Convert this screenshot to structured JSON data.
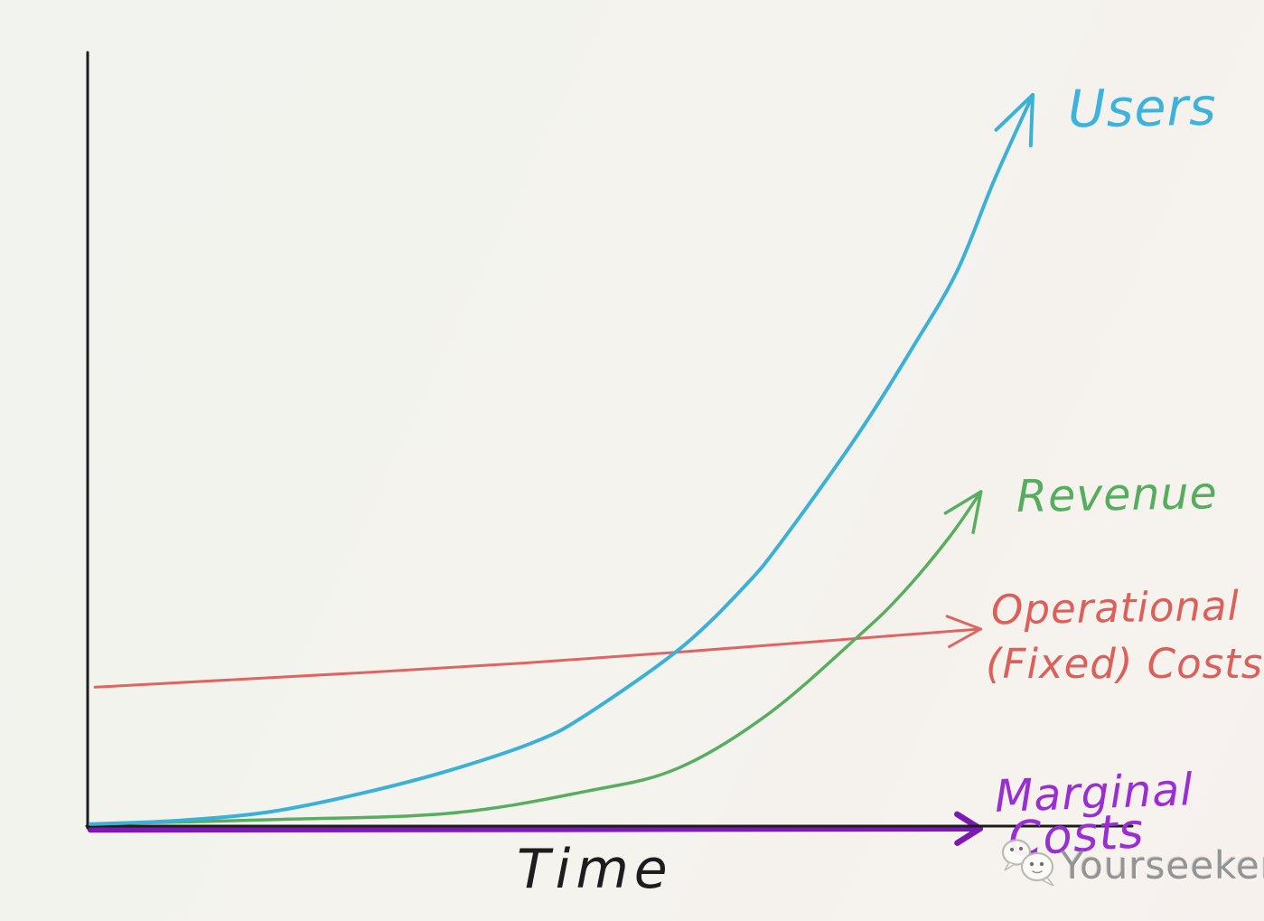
{
  "page": {
    "background": "#f3f3ee",
    "watermark": {
      "text": "Yourseeker",
      "icon": "wechat-chat-bubbles",
      "color": "#949494"
    }
  },
  "chart_data": {
    "type": "line",
    "title": "",
    "xlabel": "Time",
    "ylabel": "",
    "axis_color": "#1d1d1d",
    "grid": false,
    "legend_position": "handwritten labels at end of each line with arrow",
    "x_range": [
      0,
      10
    ],
    "y_range": [
      0,
      100
    ],
    "series": [
      {
        "name": "Users",
        "color": "#3bb1d8",
        "label_color": "#3cb3dc",
        "points": [
          [
            0,
            0.4
          ],
          [
            0.96,
            0.9
          ],
          [
            1.92,
            2.1
          ],
          [
            2.88,
            4.6
          ],
          [
            3.83,
            7.8
          ],
          [
            4.73,
            11.7
          ],
          [
            5.27,
            15.4
          ],
          [
            6.26,
            24.4
          ],
          [
            6.93,
            32.7
          ],
          [
            7.33,
            38.9
          ],
          [
            8.15,
            53.7
          ],
          [
            8.75,
            66.0
          ],
          [
            9.2,
            76.0
          ],
          [
            9.59,
            88.3
          ],
          [
            10,
            100
          ]
        ]
      },
      {
        "name": "Revenue",
        "color": "#57ae5f",
        "label_color": "#55ad5e",
        "points": [
          [
            0,
            0.4
          ],
          [
            1.92,
            1.0
          ],
          [
            3.83,
            1.9
          ],
          [
            5.27,
            4.9
          ],
          [
            6.23,
            8.0
          ],
          [
            7.19,
            15.4
          ],
          [
            8.17,
            26.3
          ],
          [
            8.63,
            32.1
          ],
          [
            9.11,
            39.5
          ],
          [
            9.44,
            45.6
          ]
        ]
      },
      {
        "name": "Operational (Fixed) Costs",
        "label_lines": [
          "Operational",
          "(Fixed) Costs"
        ],
        "color": "#df6560",
        "label_color": "#dd5f5a",
        "points": [
          [
            0.05,
            19.1
          ],
          [
            4.6,
            22.4
          ],
          [
            9.2,
            26.8
          ]
        ]
      },
      {
        "name": "Marginal Costs",
        "label_lines": [
          "Marginal",
          "Costs"
        ],
        "color": "#7d18b5",
        "label_color": "#9b2ed2",
        "points": [
          [
            0,
            0
          ],
          [
            9.25,
            0.15
          ]
        ]
      }
    ]
  }
}
